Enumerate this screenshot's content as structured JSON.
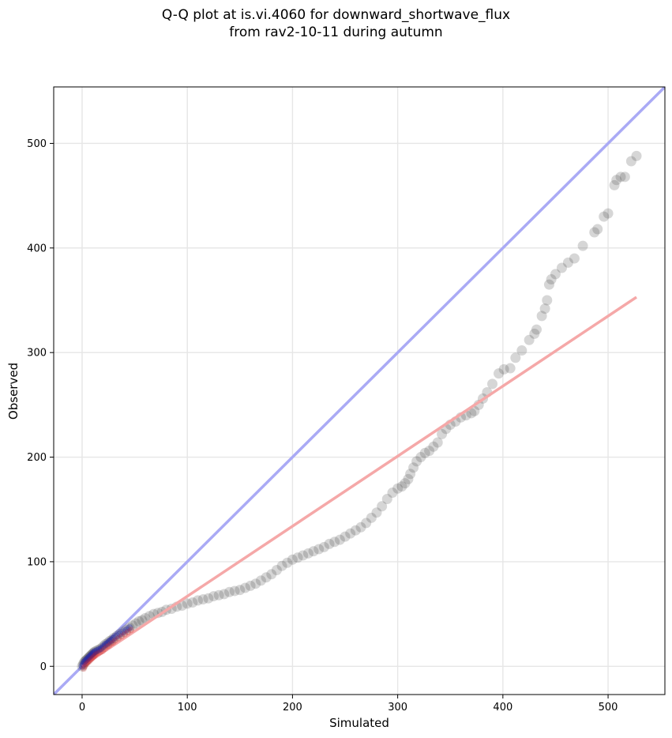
{
  "chart_data": {
    "type": "scatter",
    "title_line1": "Q-Q plot at is.vi.4060 for downward_shortwave_flux",
    "title_line2": "from rav2-10-11 during autumn",
    "xlabel": "Simulated",
    "ylabel": "Observed",
    "xlim": [
      -27,
      554
    ],
    "ylim": [
      -27,
      554
    ],
    "xticks": [
      0,
      100,
      200,
      300,
      400,
      500
    ],
    "yticks": [
      0,
      100,
      200,
      300,
      400,
      500
    ],
    "grid": true,
    "identity_line": {
      "color": "#aaaaf5",
      "x": [
        -27,
        554
      ],
      "y": [
        -27,
        554
      ]
    },
    "fit_line": {
      "color": "#f5a8a8",
      "x": [
        0,
        527
      ],
      "y": [
        0,
        353
      ]
    },
    "low_end_colors": {
      "blue": "#2222aa",
      "red": "#cc2222"
    },
    "points": {
      "x": [
        0,
        1,
        2,
        3,
        4,
        5,
        6,
        7,
        8,
        9,
        10,
        11,
        12,
        14,
        16,
        18,
        20,
        22,
        24,
        26,
        28,
        30,
        33,
        36,
        39,
        42,
        45,
        48,
        51,
        54,
        57,
        60,
        64,
        68,
        72,
        76,
        80,
        85,
        90,
        95,
        100,
        105,
        110,
        115,
        120,
        125,
        130,
        135,
        140,
        145,
        150,
        155,
        160,
        165,
        170,
        175,
        180,
        185,
        190,
        195,
        200,
        205,
        210,
        215,
        220,
        225,
        230,
        235,
        240,
        245,
        250,
        255,
        260,
        265,
        270,
        275,
        280,
        285,
        290,
        295,
        300,
        304,
        307,
        310,
        312,
        315,
        318,
        322,
        326,
        330,
        334,
        338,
        342,
        346,
        350,
        355,
        360,
        365,
        370,
        373,
        377,
        381,
        385,
        390,
        396,
        401,
        407,
        412,
        418,
        425,
        430,
        432,
        437,
        440,
        442,
        444,
        446,
        450,
        456,
        462,
        468,
        476,
        487,
        490,
        496,
        500,
        506,
        508,
        512,
        516,
        522,
        527
      ],
      "y": [
        0,
        2,
        4,
        5,
        6,
        7,
        8,
        9,
        10,
        11,
        12,
        13,
        14,
        15,
        16,
        17,
        19,
        21,
        22,
        24,
        25,
        27,
        29,
        31,
        33,
        35,
        37,
        39,
        41,
        43,
        44,
        46,
        48,
        50,
        51,
        52,
        54,
        55,
        57,
        58,
        60,
        61,
        63,
        64,
        65,
        67,
        68,
        69,
        71,
        72,
        73,
        75,
        77,
        79,
        82,
        85,
        88,
        92,
        96,
        99,
        102,
        104,
        106,
        108,
        110,
        112,
        114,
        117,
        119,
        121,
        124,
        127,
        130,
        133,
        137,
        142,
        147,
        153,
        160,
        166,
        170,
        172,
        175,
        179,
        184,
        190,
        196,
        200,
        204,
        206,
        210,
        214,
        222,
        227,
        231,
        234,
        238,
        240,
        242,
        244,
        250,
        256,
        262,
        270,
        280,
        284,
        285,
        295,
        302,
        312,
        318,
        322,
        335,
        342,
        350,
        365,
        370,
        375,
        381,
        386,
        390,
        402,
        415,
        418,
        430,
        433,
        460,
        465,
        468,
        468,
        483,
        488
      ]
    }
  }
}
